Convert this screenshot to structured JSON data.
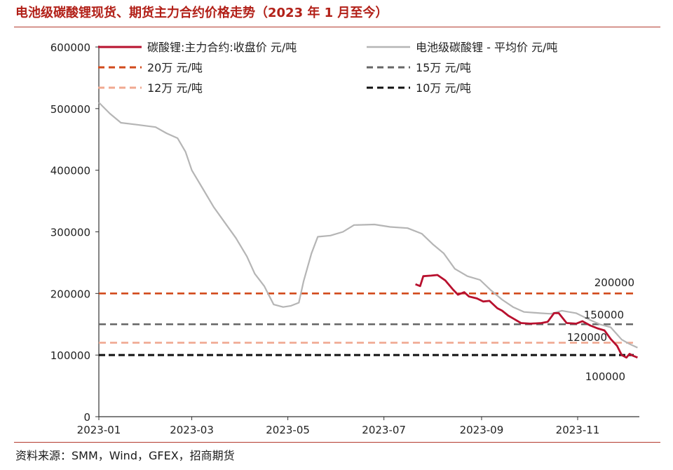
{
  "title": "电池级碳酸锂现货、期货主力合约价格走势（2023 年 1 月至今）",
  "source": "资料来源：SMM，Wind，GFEX，招商期货",
  "chart_data": {
    "type": "line",
    "title": "电池级碳酸锂现货、期货主力合约价格走势（2023 年 1 月至今）",
    "xlabel": "",
    "ylabel": "",
    "x_ticks": [
      "2023-01",
      "2023-03",
      "2023-05",
      "2023-07",
      "2023-09",
      "2023-11"
    ],
    "y_ticks": [
      0,
      100000,
      200000,
      300000,
      400000,
      500000,
      600000
    ],
    "ylim": [
      0,
      600000
    ],
    "xlim": [
      "2023-01-01",
      "2023-12-10"
    ],
    "grid": false,
    "legend_position": "top",
    "series": [
      {
        "name": "碳酸锂:主力合约:收盘价 元/吨",
        "color": "#b8102e",
        "style": "solid",
        "points": [
          [
            "2023-07-21",
            215000
          ],
          [
            "2023-07-24",
            212000
          ],
          [
            "2023-07-26",
            228000
          ],
          [
            "2023-07-31",
            229000
          ],
          [
            "2023-08-04",
            230000
          ],
          [
            "2023-08-09",
            221000
          ],
          [
            "2023-08-14",
            206000
          ],
          [
            "2023-08-17",
            198000
          ],
          [
            "2023-08-21",
            202000
          ],
          [
            "2023-08-24",
            195000
          ],
          [
            "2023-08-29",
            192000
          ],
          [
            "2023-09-02",
            187000
          ],
          [
            "2023-09-06",
            188000
          ],
          [
            "2023-09-11",
            176000
          ],
          [
            "2023-09-14",
            172000
          ],
          [
            "2023-09-18",
            164000
          ],
          [
            "2023-09-22",
            158000
          ],
          [
            "2023-09-26",
            152000
          ],
          [
            "2023-10-02",
            151000
          ],
          [
            "2023-10-09",
            152000
          ],
          [
            "2023-10-13",
            154000
          ],
          [
            "2023-10-17",
            168000
          ],
          [
            "2023-10-20",
            168000
          ],
          [
            "2023-10-25",
            152000
          ],
          [
            "2023-10-31",
            151000
          ],
          [
            "2023-11-04",
            155000
          ],
          [
            "2023-11-09",
            148000
          ],
          [
            "2023-11-14",
            143000
          ],
          [
            "2023-11-18",
            140000
          ],
          [
            "2023-11-22",
            126000
          ],
          [
            "2023-11-26",
            115000
          ],
          [
            "2023-11-29",
            100000
          ],
          [
            "2023-12-02",
            96000
          ],
          [
            "2023-12-04",
            102000
          ],
          [
            "2023-12-06",
            99000
          ],
          [
            "2023-12-09",
            96000
          ]
        ]
      },
      {
        "name": "电池级碳酸锂 - 平均价 元/吨",
        "color": "#b5b5b5",
        "style": "solid",
        "points": [
          [
            "2023-01-01",
            510000
          ],
          [
            "2023-01-08",
            492000
          ],
          [
            "2023-01-15",
            477000
          ],
          [
            "2023-01-25",
            474000
          ],
          [
            "2023-02-06",
            470000
          ],
          [
            "2023-02-13",
            460000
          ],
          [
            "2023-02-20",
            452000
          ],
          [
            "2023-02-25",
            430000
          ],
          [
            "2023-03-01",
            400000
          ],
          [
            "2023-03-08",
            370000
          ],
          [
            "2023-03-15",
            340000
          ],
          [
            "2023-03-22",
            315000
          ],
          [
            "2023-03-29",
            290000
          ],
          [
            "2023-04-05",
            260000
          ],
          [
            "2023-04-10",
            232000
          ],
          [
            "2023-04-16",
            212000
          ],
          [
            "2023-04-22",
            182000
          ],
          [
            "2023-04-28",
            178000
          ],
          [
            "2023-05-03",
            180000
          ],
          [
            "2023-05-08",
            185000
          ],
          [
            "2023-05-11",
            220000
          ],
          [
            "2023-05-16",
            265000
          ],
          [
            "2023-05-20",
            292000
          ],
          [
            "2023-05-28",
            294000
          ],
          [
            "2023-06-05",
            300000
          ],
          [
            "2023-06-12",
            311000
          ],
          [
            "2023-06-25",
            312000
          ],
          [
            "2023-07-05",
            308000
          ],
          [
            "2023-07-16",
            306000
          ],
          [
            "2023-07-25",
            297000
          ],
          [
            "2023-08-01",
            280000
          ],
          [
            "2023-08-08",
            265000
          ],
          [
            "2023-08-15",
            240000
          ],
          [
            "2023-08-23",
            228000
          ],
          [
            "2023-08-31",
            222000
          ],
          [
            "2023-09-07",
            205000
          ],
          [
            "2023-09-14",
            190000
          ],
          [
            "2023-09-21",
            178000
          ],
          [
            "2023-09-28",
            170000
          ],
          [
            "2023-10-08",
            168000
          ],
          [
            "2023-10-15",
            167000
          ],
          [
            "2023-10-22",
            172000
          ],
          [
            "2023-10-31",
            168000
          ],
          [
            "2023-11-08",
            158000
          ],
          [
            "2023-11-15",
            150000
          ],
          [
            "2023-11-22",
            145000
          ],
          [
            "2023-11-29",
            125000
          ],
          [
            "2023-12-04",
            118000
          ],
          [
            "2023-12-09",
            112000
          ]
        ]
      },
      {
        "name": "20万 元/吨",
        "color": "#d24a1c",
        "style": "dashed",
        "constant": 200000,
        "label": "200000"
      },
      {
        "name": "15万 元/吨",
        "color": "#666666",
        "style": "dashed",
        "constant": 150000,
        "label": "150000"
      },
      {
        "name": "12万 元/吨",
        "color": "#f0a890",
        "style": "dashed",
        "constant": 120000,
        "label": "120000"
      },
      {
        "name": "10万 元/吨",
        "color": "#111111",
        "style": "dashed",
        "constant": 100000,
        "label": "100000"
      }
    ]
  }
}
